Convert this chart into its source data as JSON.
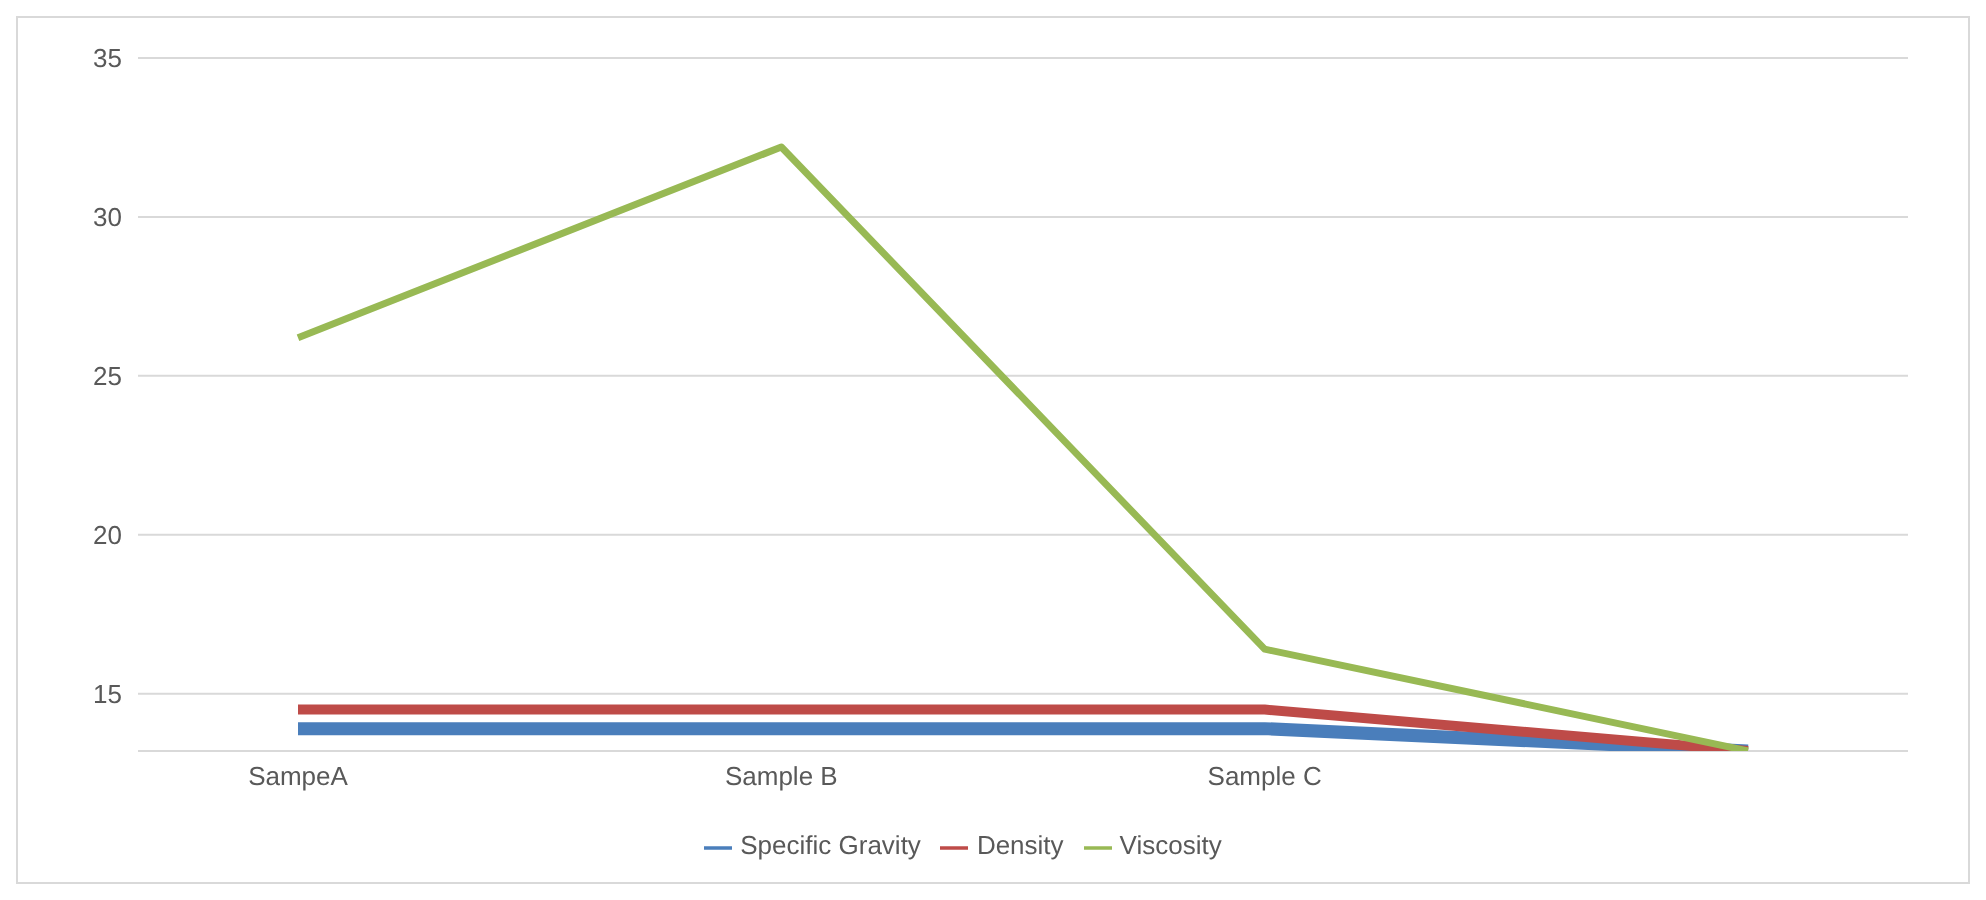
{
  "chart_data": {
    "type": "line",
    "categories": [
      "SampeA",
      "Sample B",
      "Sample C",
      null
    ],
    "series": [
      {
        "name": "Specific Gravity",
        "color": "#4a7ebb",
        "values": [
          13.9,
          13.9,
          13.9,
          13.2
        ]
      },
      {
        "name": "Density",
        "color": "#be4b48",
        "values": [
          14.5,
          14.5,
          14.5,
          13.2
        ]
      },
      {
        "name": "Viscosity",
        "color": "#98b954",
        "values": [
          26.2,
          32.2,
          16.4,
          13.2
        ]
      }
    ],
    "ylim": [
      13.2,
      35
    ],
    "yticks": [
      15,
      20,
      25,
      30,
      35
    ],
    "grid": "y",
    "legend": "bottom",
    "marker": "none",
    "line_style": "solid"
  }
}
